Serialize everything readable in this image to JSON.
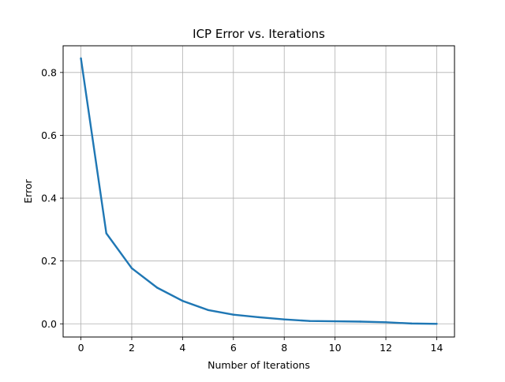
{
  "chart_data": {
    "type": "line",
    "title": "ICP Error vs. Iterations",
    "xlabel": "Number of Iterations",
    "ylabel": "Error",
    "xlim": [
      -0.7,
      14.7
    ],
    "ylim": [
      -0.042,
      0.885
    ],
    "xticks": [
      0,
      2,
      4,
      6,
      8,
      10,
      12,
      14
    ],
    "yticks": [
      0.0,
      0.2,
      0.4,
      0.6,
      0.8
    ],
    "ytick_labels": [
      "0.0",
      "0.2",
      "0.4",
      "0.6",
      "0.8"
    ],
    "grid": true,
    "series": [
      {
        "color": "#1f77b4",
        "x": [
          0,
          1,
          2,
          3,
          4,
          5,
          6,
          7,
          8,
          9,
          10,
          11,
          12,
          13,
          14
        ],
        "y": [
          0.845,
          0.288,
          0.177,
          0.115,
          0.073,
          0.044,
          0.029,
          0.021,
          0.014,
          0.009,
          0.008,
          0.007,
          0.005,
          0.001,
          0.0
        ]
      }
    ]
  }
}
